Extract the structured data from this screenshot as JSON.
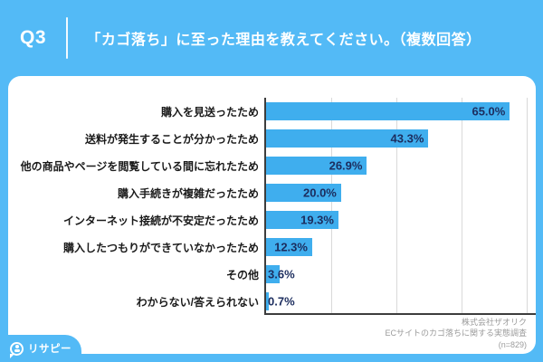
{
  "colors": {
    "background": "#53BAF6",
    "card": "#FFFFFF",
    "bar": "#3FAEEE",
    "axis": "#3D3D3D",
    "gridline": "#D9D9D9",
    "category_text": "#1A1A1A",
    "value_text": "#1C2D5E",
    "attribution_text": "#9B9B9B",
    "header_text": "#FFFFFF"
  },
  "header": {
    "q_label": "Q3",
    "title": "「カゴ落ち」に至った理由を教えてください。（複数回答）"
  },
  "chart_data": {
    "type": "bar",
    "orientation": "horizontal",
    "title": "「カゴ落ち」に至った理由を教えてください。（複数回答）",
    "categories": [
      "購入を見送ったため",
      "送料が発生することが分かったため",
      "他の商品やページを閲覧している間に忘れたため",
      "購入手続きが複雑だったため",
      "インターネット接続が不安定だったため",
      "購入したつもりができていなかったため",
      "その他",
      "わからない/答えられない"
    ],
    "values": [
      65.0,
      43.3,
      26.9,
      20.0,
      19.3,
      12.3,
      3.6,
      0.7
    ],
    "value_labels": [
      "65.0%",
      "43.3%",
      "26.9%",
      "20.0%",
      "19.3%",
      "12.3%",
      "3.6%",
      "0.7%"
    ],
    "xlim": [
      0,
      72.4
    ],
    "gridlines_at": [
      17.5,
      35,
      52.5,
      70
    ],
    "grid": true,
    "legend": false,
    "value_label_position": "inside-end"
  },
  "footer": {
    "logo_text": "リサピー",
    "attribution_lines": [
      "株式会社ザオリク",
      "ECサイトのカゴ落ちに関する実態調査",
      "(n=829)"
    ]
  }
}
